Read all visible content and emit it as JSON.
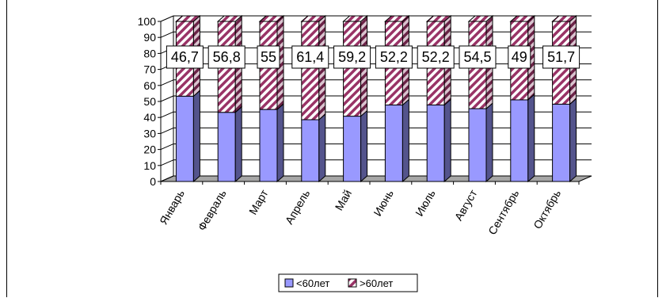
{
  "chart_data": {
    "type": "bar",
    "stacked": true,
    "three_d": true,
    "categories": [
      "Январь",
      "Февраль",
      "Март",
      "Апрель",
      "Май",
      "Июнь",
      "Июль",
      "Август",
      "Сентябрь",
      "Октябрь"
    ],
    "series": [
      {
        "name": "<60лет",
        "values": [
          53.3,
          43.2,
          45,
          38.6,
          40.8,
          47.8,
          47.8,
          45.5,
          51,
          48.3
        ],
        "color": "#9999ff"
      },
      {
        "name": ">60лет",
        "values": [
          46.7,
          56.8,
          55,
          61.4,
          59.2,
          52.2,
          52.2,
          54.5,
          49,
          51.7
        ],
        "color": "#993366"
      }
    ],
    "data_labels": [
      "46,7",
      "56,8",
      "55",
      "61,4",
      "59,2",
      "52,2",
      "52,2",
      "54,5",
      "49",
      "51,7"
    ],
    "y_ticks": [
      "0",
      "10",
      "20",
      "30",
      "40",
      "50",
      "60",
      "70",
      "80",
      "90",
      "100"
    ],
    "ylim": [
      0,
      100
    ],
    "grid": true,
    "legend_position": "bottom",
    "title": "",
    "xlabel": "",
    "ylabel": ""
  }
}
